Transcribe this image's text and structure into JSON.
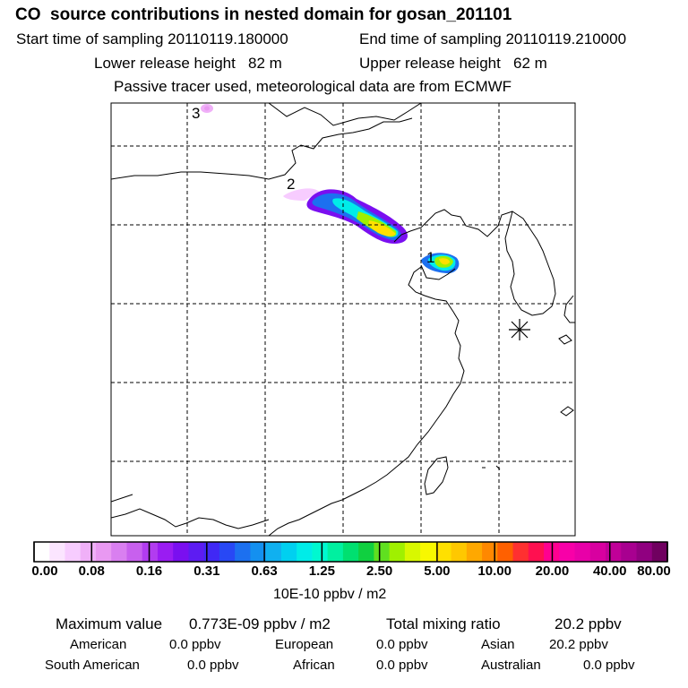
{
  "header": {
    "title": "CO  source contributions in nested domain for gosan_201101",
    "start_label": "Start time of sampling 20110119.180000",
    "end_label": "End time of sampling 20110119.210000",
    "lower_label": "Lower release height   82 m",
    "upper_label": "Upper release height   62 m",
    "note": "Passive tracer used, meteorological data are from ECMWF"
  },
  "map": {
    "markers": [
      {
        "label": "1"
      },
      {
        "label": "2"
      },
      {
        "label": "3"
      }
    ],
    "receptor_symbol": "asterisk"
  },
  "colorbar": {
    "tick_labels": [
      "0.00",
      "0.08",
      "0.16",
      "0.31",
      "0.63",
      "1.25",
      "2.50",
      "5.00",
      "10.00",
      "20.00",
      "40.00",
      "80.00"
    ],
    "units": "10E-10 ppbv / m2",
    "colors": [
      "#ffffff",
      "#fbe5ff",
      "#f7ccff",
      "#f0b0f8",
      "#e999f2",
      "#d97ff0",
      "#c860ee",
      "#b23cf0",
      "#9a1cf2",
      "#7a0ff0",
      "#5d1cf2",
      "#4028f5",
      "#2848f5",
      "#1c70f0",
      "#1490f0",
      "#10b0f0",
      "#00d0f0",
      "#00ece8",
      "#00f8d0",
      "#00f0a0",
      "#00e070",
      "#10d040",
      "#60e020",
      "#a0f000",
      "#d8f800",
      "#f8f800",
      "#ffe000",
      "#ffc800",
      "#ffa800",
      "#ff8800",
      "#ff6000",
      "#ff3030",
      "#ff1050",
      "#ff0090",
      "#f800a8",
      "#e800a8",
      "#d800a0",
      "#c00098",
      "#a80090",
      "#900080",
      "#700060"
    ]
  },
  "stats": {
    "max_label": "Maximum value",
    "max_value": "0.773E-09 ppbv / m2",
    "total_label": "Total mixing ratio",
    "total_value": "20.2 ppbv",
    "regions": [
      {
        "name": "American",
        "value": "0.0 ppbv"
      },
      {
        "name": "European",
        "value": "0.0 ppbv"
      },
      {
        "name": "Asian",
        "value": "20.2 ppbv"
      },
      {
        "name": "South American",
        "value": "0.0 ppbv"
      },
      {
        "name": "African",
        "value": "0.0 ppbv"
      },
      {
        "name": "Australian",
        "value": "0.0 ppbv"
      }
    ]
  }
}
